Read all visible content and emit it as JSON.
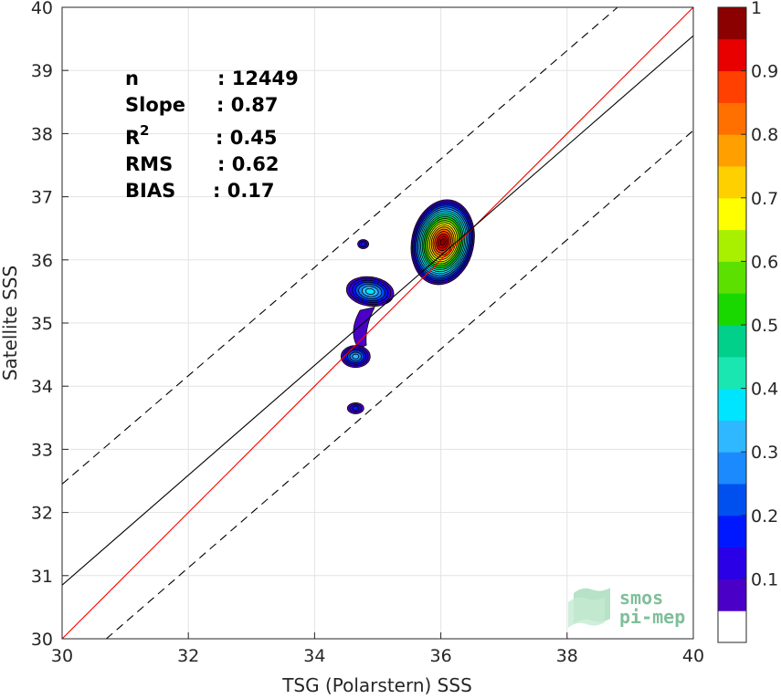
{
  "chart_data": {
    "type": "contour",
    "xlabel": "TSG (Polarstern) SSS",
    "ylabel": "Satellite SSS",
    "xlim": [
      30,
      40
    ],
    "ylim": [
      30,
      40
    ],
    "xticks": [
      30,
      32,
      34,
      36,
      38,
      40
    ],
    "yticks": [
      30,
      31,
      32,
      33,
      34,
      35,
      36,
      37,
      38,
      39,
      40
    ],
    "grid": true,
    "stats": {
      "n_label": "n",
      "n_value": ": 12449",
      "slope_label": "Slope",
      "slope_value": ": 0.87",
      "r2_label": "R",
      "r2_sup": "2",
      "r2_value": ": 0.45",
      "rms_label": "RMS",
      "rms_value": ": 0.62",
      "bias_label": "BIAS",
      "bias_value": ": 0.17"
    },
    "lines": [
      {
        "name": "one-to-one",
        "color": "#ff0000",
        "style": "solid",
        "x": [
          30,
          40
        ],
        "y": [
          30,
          40
        ]
      },
      {
        "name": "regression",
        "color": "#000000",
        "style": "solid",
        "x": [
          30,
          40
        ],
        "y": [
          30.85,
          39.55
        ]
      },
      {
        "name": "upper-bound",
        "color": "#000000",
        "style": "dashed",
        "x": [
          30,
          38.8
        ],
        "y": [
          32.45,
          40
        ]
      },
      {
        "name": "lower-bound",
        "color": "#000000",
        "style": "dashed",
        "x": [
          30.7,
          40
        ],
        "y": [
          30,
          38.05
        ]
      }
    ],
    "density_peaks": [
      {
        "x": 36.03,
        "y": 36.28,
        "max_level": 1.0
      },
      {
        "x": 34.88,
        "y": 35.5,
        "max_level": 0.35
      },
      {
        "x": 34.65,
        "y": 34.47,
        "max_level": 0.3
      },
      {
        "x": 34.77,
        "y": 36.25,
        "max_level": 0.15
      },
      {
        "x": 34.65,
        "y": 33.65,
        "max_level": 0.15
      }
    ],
    "colorbar": {
      "min": 0,
      "max": 1,
      "tick_values": [
        0.1,
        0.2,
        0.3,
        0.4,
        0.5,
        0.6,
        0.7,
        0.8,
        0.9,
        1
      ],
      "tick_labels": [
        "0.1",
        "0.2",
        "0.3",
        "0.4",
        "0.5",
        "0.6",
        "0.7",
        "0.8",
        "0.9",
        "1"
      ],
      "levels": [
        0.05,
        0.1,
        0.15,
        0.2,
        0.25,
        0.3,
        0.35,
        0.4,
        0.45,
        0.5,
        0.55,
        0.6,
        0.65,
        0.7,
        0.75,
        0.8,
        0.85,
        0.9,
        0.95,
        1.0
      ],
      "colors": [
        "#6a00a8",
        "#4b00c8",
        "#2a00e6",
        "#0018ff",
        "#0050f0",
        "#1b8aff",
        "#2fb8ff",
        "#00e5ff",
        "#19e6b0",
        "#00d08a",
        "#18d800",
        "#5be000",
        "#a8f000",
        "#ffff00",
        "#ffd000",
        "#ffa000",
        "#ff7000",
        "#ff4000",
        "#e80000",
        "#c00000",
        "#8b0000"
      ]
    }
  },
  "logo": {
    "line1": "smos",
    "line2": "pi-mep"
  }
}
